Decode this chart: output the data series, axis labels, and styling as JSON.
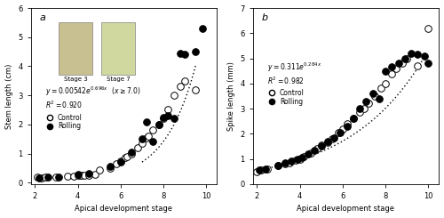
{
  "panel_a": {
    "label": "a",
    "xlabel": "Apical development stage",
    "ylabel": "Stem length (cm)",
    "xlim": [
      1.8,
      10.5
    ],
    "ylim": [
      -0.05,
      6
    ],
    "yticks": [
      0,
      1,
      2,
      3,
      4,
      5,
      6
    ],
    "xticks": [
      2,
      4,
      6,
      8,
      10
    ],
    "equation_text": "y = 0.00542e^{0.696x}",
    "condition_text": "(x \\geq 7.0)",
    "r2_text": "R^2 = 0.920",
    "fit_coeff": 0.00542,
    "fit_exp": 0.696,
    "fit_xmin": 7.0,
    "fit_xmax": 9.5,
    "control_x": [
      2.1,
      2.3,
      2.5,
      3.0,
      3.5,
      3.8,
      4.0,
      4.1,
      4.2,
      4.3,
      4.5,
      4.8,
      5.0,
      5.5,
      5.8,
      6.0,
      6.2,
      6.3,
      6.5,
      6.8,
      7.0,
      7.2,
      7.3,
      7.5,
      7.8,
      8.0,
      8.2,
      8.5,
      8.8,
      9.0,
      9.5
    ],
    "control_y": [
      0.2,
      0.15,
      0.18,
      0.2,
      0.22,
      0.22,
      0.25,
      0.25,
      0.25,
      0.25,
      0.25,
      0.28,
      0.45,
      0.5,
      0.65,
      0.75,
      0.85,
      0.9,
      1.0,
      1.2,
      1.35,
      1.55,
      1.6,
      1.8,
      2.0,
      2.2,
      2.5,
      3.0,
      3.3,
      3.5,
      3.2
    ],
    "rolling_x": [
      2.2,
      2.6,
      3.1,
      4.0,
      4.5,
      5.5,
      6.0,
      6.5,
      7.0,
      7.2,
      7.5,
      7.8,
      8.0,
      8.2,
      8.5,
      8.8,
      9.0,
      9.5,
      9.8
    ],
    "rolling_y": [
      0.15,
      0.2,
      0.2,
      0.28,
      0.3,
      0.55,
      0.7,
      1.05,
      1.5,
      2.1,
      1.4,
      2.0,
      2.25,
      2.3,
      2.2,
      4.45,
      4.4,
      4.5,
      5.3
    ]
  },
  "panel_b": {
    "label": "b",
    "xlabel": "Apical development stage",
    "ylabel": "Spike length (mm)",
    "xlim": [
      1.8,
      10.5
    ],
    "ylim": [
      0,
      7
    ],
    "yticks": [
      0,
      1,
      2,
      3,
      4,
      5,
      6,
      7
    ],
    "xticks": [
      2,
      4,
      6,
      8,
      10
    ],
    "equation_text": "y = 0.311e^{0.284x}",
    "r2_text": "R^2 = 0.982",
    "fit_coeff": 0.311,
    "fit_exp": 0.284,
    "fit_xmin": 2.0,
    "fit_xmax": 9.8,
    "control_x": [
      2.0,
      2.2,
      2.5,
      3.0,
      3.3,
      3.5,
      3.8,
      4.0,
      4.2,
      4.5,
      4.8,
      5.0,
      5.3,
      5.5,
      5.8,
      6.0,
      6.2,
      6.5,
      6.8,
      7.0,
      7.2,
      7.5,
      7.8,
      8.0,
      8.3,
      8.5,
      8.8,
      9.0,
      9.5,
      10.0
    ],
    "control_y": [
      0.5,
      0.55,
      0.6,
      0.75,
      0.8,
      0.85,
      0.95,
      1.0,
      1.1,
      1.25,
      1.4,
      1.55,
      1.65,
      1.8,
      2.05,
      2.2,
      2.4,
      2.6,
      2.85,
      3.0,
      3.2,
      3.5,
      3.8,
      4.0,
      4.4,
      4.6,
      4.8,
      5.0,
      4.7,
      6.2
    ],
    "rolling_x": [
      2.1,
      2.4,
      3.0,
      3.3,
      3.6,
      3.9,
      4.1,
      4.4,
      4.7,
      5.0,
      5.3,
      5.6,
      5.9,
      6.2,
      6.5,
      6.8,
      7.1,
      7.4,
      7.7,
      8.0,
      8.3,
      8.6,
      8.9,
      9.2,
      9.5,
      9.8,
      10.0
    ],
    "rolling_y": [
      0.55,
      0.6,
      0.75,
      0.85,
      0.9,
      1.0,
      1.05,
      1.2,
      1.35,
      1.5,
      1.7,
      1.85,
      2.05,
      2.3,
      2.6,
      3.0,
      3.3,
      3.6,
      3.4,
      4.5,
      4.65,
      4.8,
      5.0,
      5.2,
      5.15,
      5.1,
      4.8
    ]
  },
  "marker_size": 5.5,
  "open_color": "white",
  "filled_color": "black",
  "edge_color": "black",
  "line_color": "black",
  "bg_color": "white",
  "font_size": 6.5,
  "stage3_color": "#c8c090",
  "stage7_color": "#d0d8a0"
}
